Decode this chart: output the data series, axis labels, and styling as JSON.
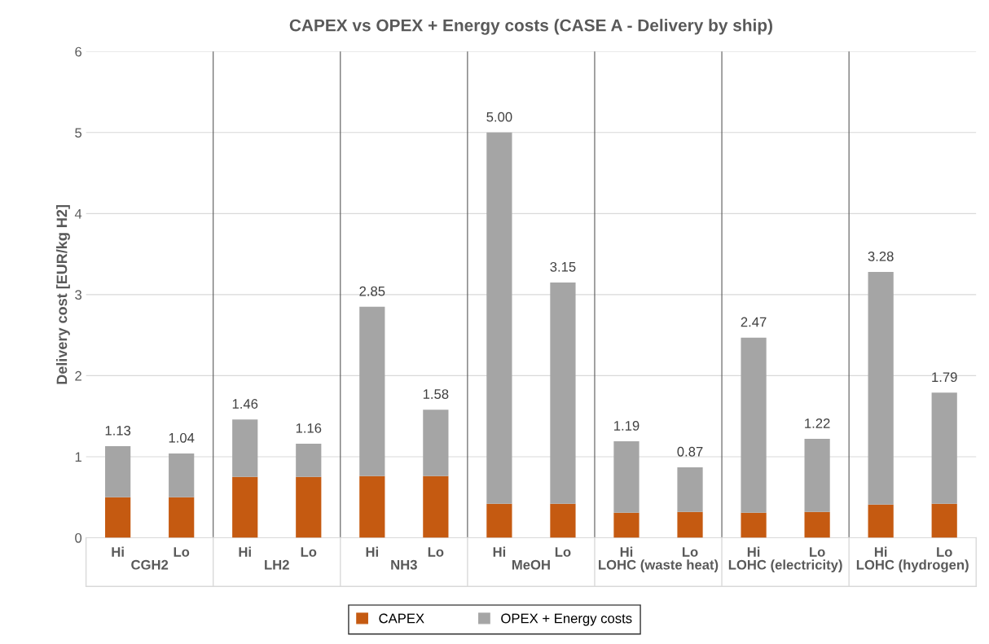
{
  "chart_data": {
    "type": "bar",
    "title": "CAPEX vs OPEX + Energy costs (CASE A - Delivery by ship)",
    "ylabel": "Delivery cost [EUR/kg H2]",
    "categories": [
      "Hi",
      "Lo",
      "Hi",
      "Lo",
      "Hi",
      "Lo",
      "Hi",
      "Lo",
      "Hi",
      "Lo",
      "Hi",
      "Lo",
      "Hi",
      "Lo"
    ],
    "annotations": [
      "CGH2",
      "LH2",
      "NH3",
      "MeOH",
      "LOHC (waste heat)",
      "LOHC (electricity)",
      "LOHC (hydrogen)"
    ],
    "stacked": true,
    "series": [
      {
        "name": "CAPEX",
        "color": "#c55a11",
        "values": [
          0.5,
          0.5,
          0.75,
          0.75,
          0.76,
          0.76,
          0.42,
          0.42,
          0.31,
          0.32,
          0.31,
          0.32,
          0.41,
          0.42
        ]
      },
      {
        "name": "OPEX + Energy costs",
        "color": "#a5a5a5",
        "values": [
          0.63,
          0.54,
          0.71,
          0.41,
          2.09,
          0.82,
          4.58,
          2.73,
          0.88,
          0.55,
          2.16,
          0.9,
          2.87,
          1.37
        ]
      }
    ],
    "totals": [
      "1.13",
      "1.04",
      "1.46",
      "1.16",
      "2.85",
      "1.58",
      "5.00",
      "3.15",
      "1.19",
      "0.87",
      "2.47",
      "1.22",
      "3.28",
      "1.79"
    ],
    "ylim": [
      0,
      6
    ],
    "yticks": [
      0,
      1,
      2,
      3,
      4,
      5,
      6
    ],
    "grid": "y",
    "legend": "bottom"
  }
}
